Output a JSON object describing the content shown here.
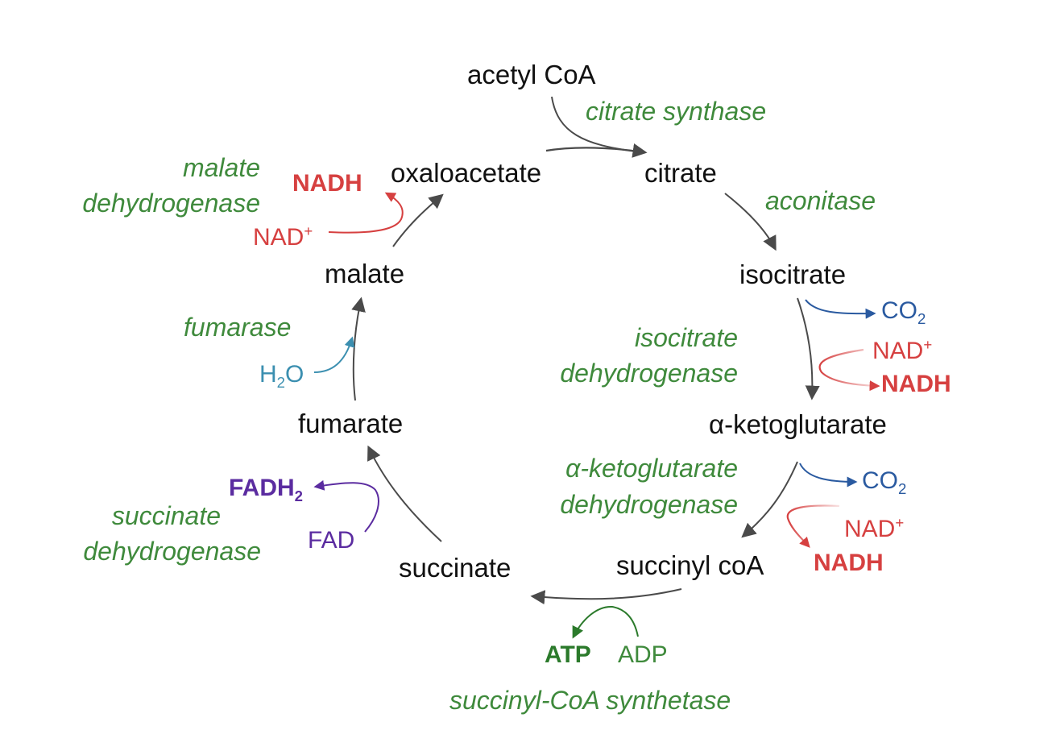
{
  "metabolites": {
    "acetyl_coa": "acetyl CoA",
    "citrate": "citrate",
    "isocitrate": "isocitrate",
    "alpha_ketoglutarate": "α-ketoglutarate",
    "succinyl_coa": "succinyl coA",
    "succinate": "succinate",
    "fumarate": "fumarate",
    "malate": "malate",
    "oxaloacetate": "oxaloacetate"
  },
  "enzymes": {
    "citrate_synthase": "citrate synthase",
    "aconitase": "aconitase",
    "isocitrate_dh_1": "isocitrate",
    "isocitrate_dh_2": "dehydrogenase",
    "akg_dh_1": "α-ketoglutarate",
    "akg_dh_2": "dehydrogenase",
    "succinyl_coa_synthetase": "succinyl-CoA synthetase",
    "succinate_dh_1": "succinate",
    "succinate_dh_2": "dehydrogenase",
    "fumarase": "fumarase",
    "malate_dh_1": "malate",
    "malate_dh_2": "dehydrogenase"
  },
  "cofactors": {
    "co2_main": "CO",
    "co2_sub": "2",
    "nad_main": "NAD",
    "nad_sup": "+",
    "nadh": "NADH",
    "atp": "ATP",
    "adp": "ADP",
    "fad": "FAD",
    "fadh2_main": "FADH",
    "fadh2_sub": "2",
    "h2o_h": "H",
    "h2o_sub": "2",
    "h2o_o": "O"
  },
  "colors": {
    "main_arrow": "#4a4a4a",
    "enzyme": "#3f8a3c",
    "nad": "#d64040",
    "co2": "#2a5aa0",
    "water": "#3b8fb0",
    "fad": "#5b2ca0",
    "atp": "#2b7a2b"
  }
}
